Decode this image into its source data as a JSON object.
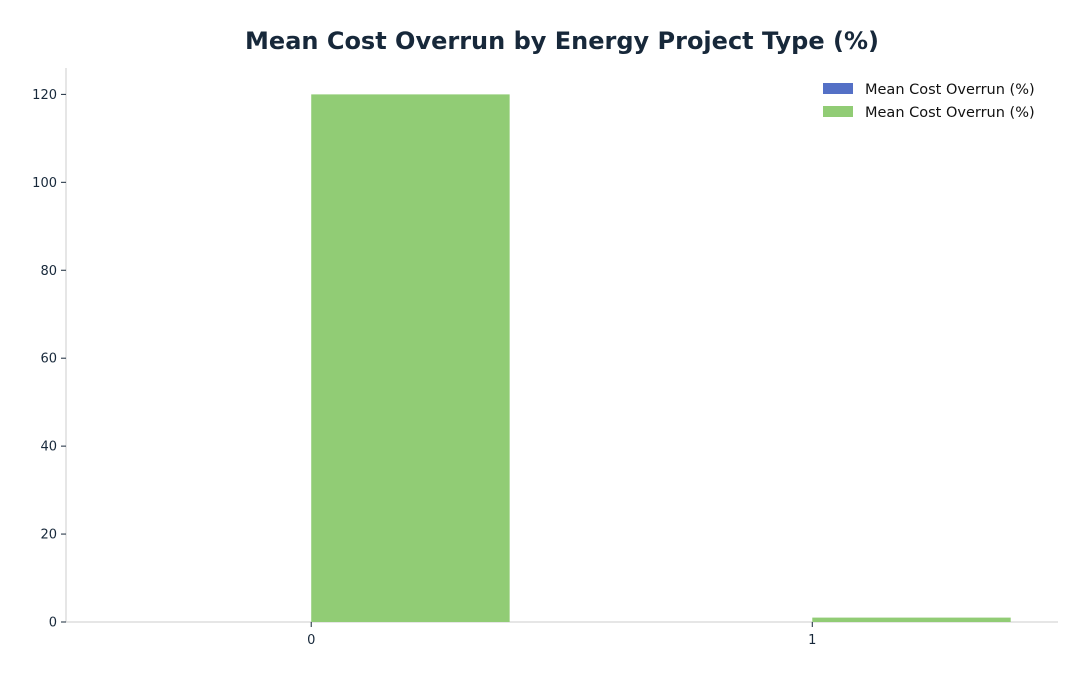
{
  "chart_data": {
    "type": "bar",
    "title": "Mean Cost Overrun by Energy Project Type (%)",
    "xlabel": "",
    "ylabel": "",
    "categories": [
      "0",
      "1"
    ],
    "ylim": [
      0,
      126
    ],
    "yticks": [
      0,
      20,
      40,
      60,
      80,
      100,
      120
    ],
    "grid": false,
    "legend_position": "top-right",
    "series": [
      {
        "name": "Mean Cost Overrun (%)",
        "color": "#5470c6",
        "values": [
          0,
          0
        ]
      },
      {
        "name": "Mean Cost Overrun (%)",
        "color": "#91cc75",
        "values": [
          120,
          1
        ]
      }
    ]
  }
}
